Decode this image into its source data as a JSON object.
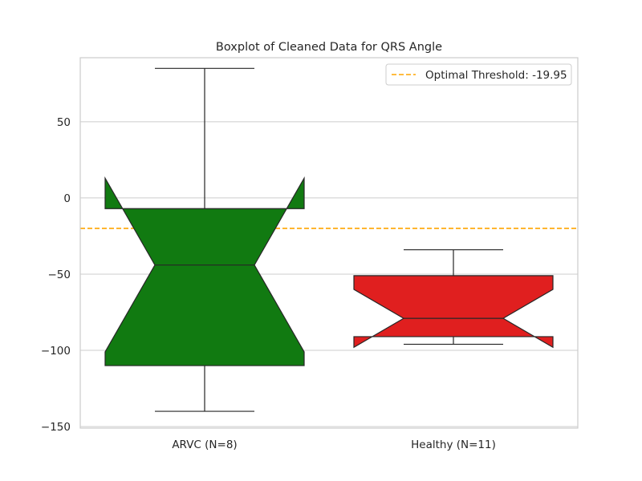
{
  "chart_data": {
    "type": "boxplot",
    "title": "Boxplot of Cleaned Data for QRS Angle",
    "xlabel": "",
    "ylabel": "",
    "ylim": [
      -151,
      92
    ],
    "yticks": [
      50,
      0,
      -50,
      -100,
      -150
    ],
    "ytick_labels": [
      "50",
      "0",
      "−50",
      "−100",
      "−150"
    ],
    "categories": [
      "ARVC (N=8)",
      "Healthy (N=11)"
    ],
    "boxes": [
      {
        "category": "ARVC (N=8)",
        "color": "#117a11",
        "whisker_low": -140,
        "q1": -110,
        "median": -44,
        "q3": -7,
        "whisker_high": 85,
        "notch_low": -101,
        "notch_high": 13
      },
      {
        "category": "Healthy (N=11)",
        "color": "#e01f1f",
        "whisker_low": -96,
        "q1": -91,
        "median": -79,
        "q3": -51,
        "whisker_high": -34,
        "notch_low": -98,
        "notch_high": -60
      }
    ],
    "threshold": {
      "label": "Optimal Threshold: -19.95",
      "value": -19.95,
      "color": "#ffa500",
      "style": "dashed"
    },
    "grid": true,
    "legend_position": "top-right"
  }
}
